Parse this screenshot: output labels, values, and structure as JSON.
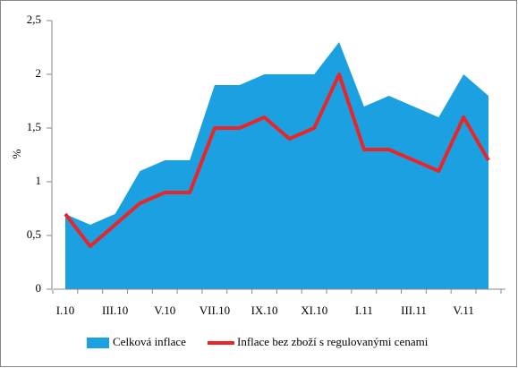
{
  "chart_data": {
    "type": "area",
    "y_label": "%",
    "categories": [
      "I.10",
      null,
      "III.10",
      null,
      "V.10",
      null,
      "VII.10",
      null,
      "IX.10",
      null,
      "XI.10",
      null,
      "I.11",
      null,
      "III.11",
      null,
      "V.11",
      null
    ],
    "series": [
      {
        "name": "Celková inflace",
        "type": "area",
        "color": "#1ba1e2",
        "values": [
          0.7,
          0.6,
          0.7,
          1.1,
          1.2,
          1.2,
          1.9,
          1.9,
          2.0,
          2.0,
          2.0,
          2.3,
          1.7,
          1.8,
          1.7,
          1.6,
          2.0,
          1.8
        ]
      },
      {
        "name": "Inflace bez zboží s regulovanými cenami",
        "type": "line",
        "color": "#e8262a",
        "values": [
          0.7,
          0.4,
          0.6,
          0.8,
          0.9,
          0.9,
          1.5,
          1.5,
          1.6,
          1.4,
          1.5,
          2.0,
          1.3,
          1.3,
          1.2,
          1.1,
          1.6,
          1.2
        ]
      }
    ],
    "ylim": [
      0,
      2.5
    ],
    "yticks": [
      0,
      {
        "value": 0.5,
        "label": "0,5"
      },
      1,
      {
        "value": 1.5,
        "label": "1,5"
      },
      2,
      {
        "value": 2.5,
        "label": "2,5"
      }
    ],
    "legend": "bottom"
  }
}
